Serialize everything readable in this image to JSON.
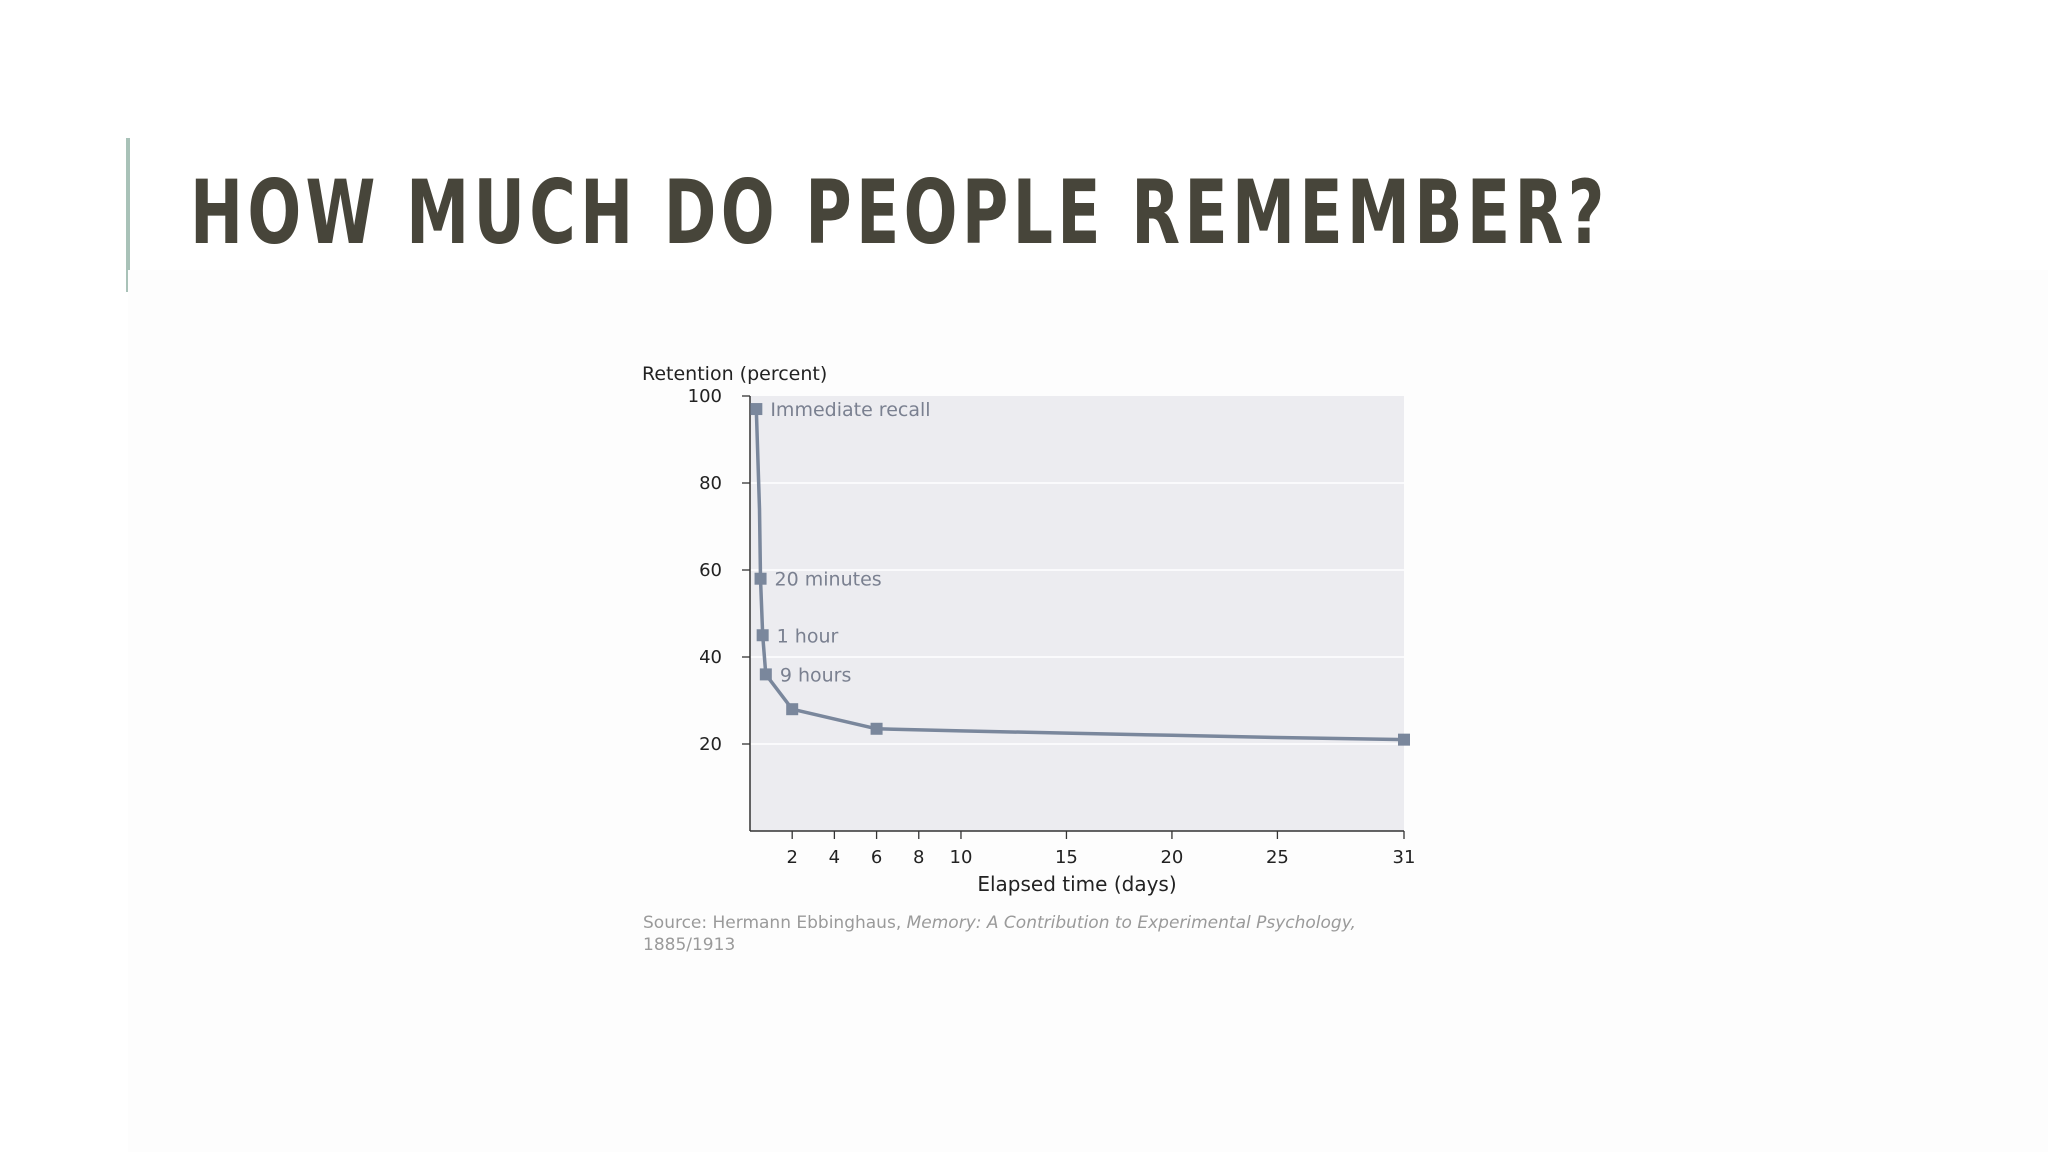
{
  "slide": {
    "title": "HOW MUCH DO PEOPLE REMEMBER?",
    "accent_color": "#a9c2b8",
    "title_color": "#47453a"
  },
  "source": {
    "prefix": "Source: Hermann Ebbinghaus, ",
    "work": "Memory: A Contribution to Experimental Psychology,",
    "years": "1885/1913"
  },
  "chart_data": {
    "type": "line",
    "ylabel": "Retention (percent)",
    "xlabel": "Elapsed time (days)",
    "ylim": [
      0,
      100
    ],
    "xlim": [
      0,
      31
    ],
    "yticks": [
      20,
      40,
      60,
      80,
      100
    ],
    "xticks": [
      2,
      4,
      6,
      8,
      10,
      15,
      20,
      25,
      31
    ],
    "grid": true,
    "series_color": "#7a879c",
    "plot_background": "#ececf0",
    "series": [
      {
        "points": [
          {
            "x": 0.3,
            "y": 97,
            "marker": true,
            "label": "Immediate recall"
          },
          {
            "x": 0.45,
            "y": 74,
            "marker": false
          },
          {
            "x": 0.5,
            "y": 58,
            "marker": true,
            "label": "20 minutes"
          },
          {
            "x": 0.6,
            "y": 45,
            "marker": true,
            "label": "1 hour"
          },
          {
            "x": 0.75,
            "y": 36,
            "marker": true,
            "label": "9 hours"
          },
          {
            "x": 2,
            "y": 28,
            "marker": true
          },
          {
            "x": 6,
            "y": 23.5,
            "marker": true
          },
          {
            "x": 10,
            "y": 23,
            "marker": false
          },
          {
            "x": 15,
            "y": 22.5,
            "marker": false
          },
          {
            "x": 20,
            "y": 22,
            "marker": false
          },
          {
            "x": 25,
            "y": 21.5,
            "marker": false
          },
          {
            "x": 31,
            "y": 21,
            "marker": true
          }
        ]
      }
    ]
  }
}
